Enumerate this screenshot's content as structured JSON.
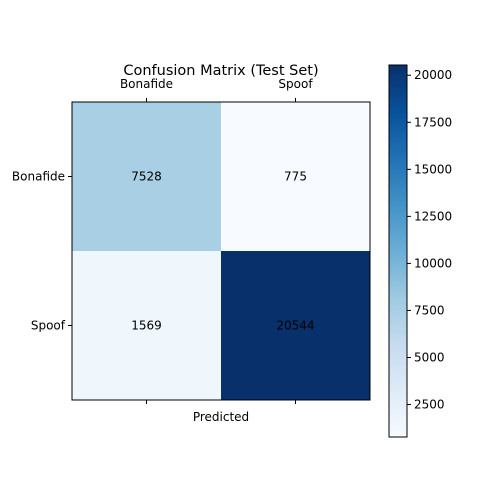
{
  "chart_data": {
    "type": "heatmap",
    "title": "Confusion Matrix (Test Set)",
    "xlabel": "Predicted",
    "ylabel": "",
    "x_categories": [
      "Bonafide",
      "Spoof"
    ],
    "y_categories": [
      "Bonafide",
      "Spoof"
    ],
    "x_ticks_position": "top",
    "values": [
      [
        7528,
        775
      ],
      [
        1569,
        20544
      ]
    ],
    "colormap": "Blues",
    "color_range": [
      775,
      20544
    ],
    "colorbar": {
      "ticks": [
        2500,
        5000,
        7500,
        10000,
        12500,
        15000,
        17500,
        20000
      ],
      "tick_labels": [
        "2500",
        "5000",
        "7500",
        "10000",
        "12500",
        "15000",
        "17500",
        "20000"
      ],
      "placement": "right"
    },
    "grid": false
  },
  "colors": {
    "blues_stops": [
      "#f7fbff",
      "#deebf7",
      "#c6dbef",
      "#9ecae1",
      "#6baed6",
      "#4292c6",
      "#2171b5",
      "#08519c",
      "#08306b"
    ]
  }
}
